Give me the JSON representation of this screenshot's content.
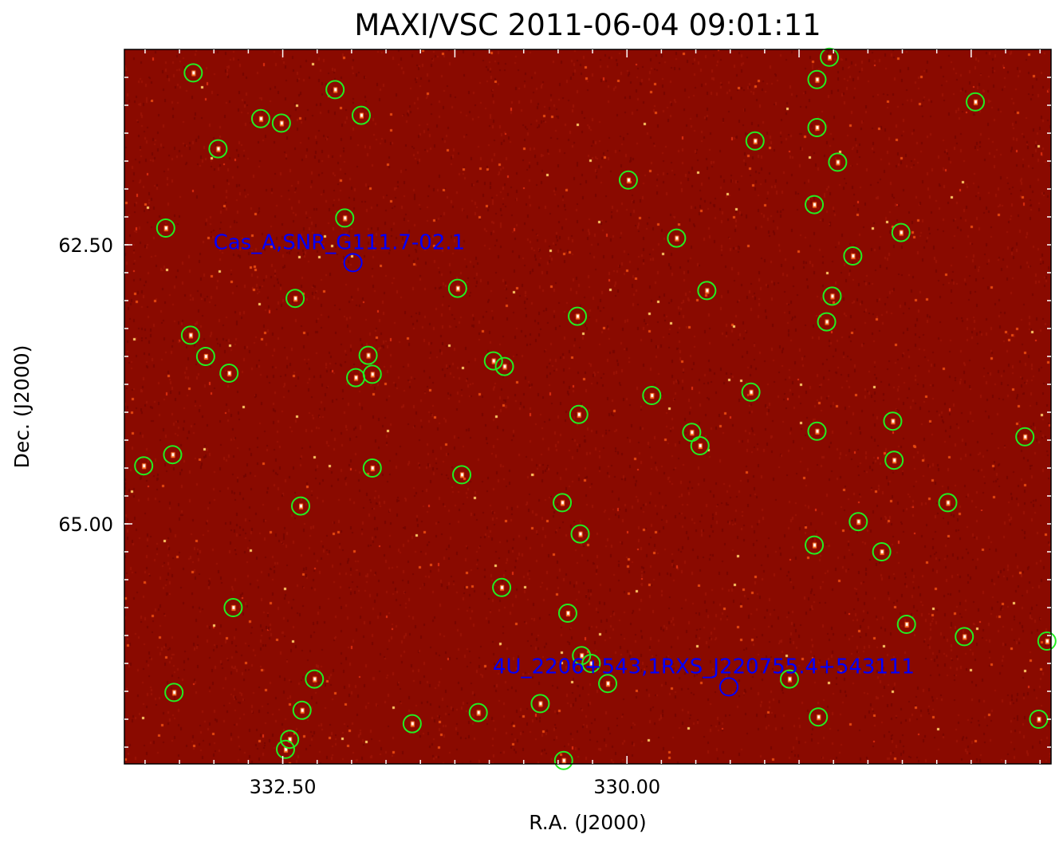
{
  "chart_data": {
    "type": "scatter",
    "title": "MAXI/VSC 2011-06-04 09:01:11",
    "xlabel": "R.A. (J2000)",
    "ylabel": "Dec. (J2000)",
    "xlim": [
      333.65,
      326.92
    ],
    "ylim": [
      60.75,
      67.15
    ],
    "x_ticks": [
      "332.50",
      "330.00"
    ],
    "y_ticks": [
      "62.50",
      "65.00"
    ],
    "x_tick_values": [
      332.5,
      330.0
    ],
    "y_tick_values": [
      62.5,
      65.0
    ],
    "background": "X-ray intensity image (dark red noise with bright point sources)",
    "colors": {
      "background": "#8b0000",
      "detected_marker": "#22ee22",
      "catalog_marker": "#0000ff",
      "frame": "#000000"
    },
    "detected_sources": [
      [
        333.15,
        60.96
      ],
      [
        332.97,
        61.64
      ],
      [
        332.66,
        61.37
      ],
      [
        332.51,
        61.41
      ],
      [
        332.12,
        61.11
      ],
      [
        331.93,
        61.34
      ],
      [
        332.05,
        62.26
      ],
      [
        333.35,
        62.35
      ],
      [
        332.41,
        62.98
      ],
      [
        333.17,
        63.31
      ],
      [
        333.06,
        63.5
      ],
      [
        332.89,
        63.65
      ],
      [
        331.88,
        63.49
      ],
      [
        331.97,
        63.69
      ],
      [
        331.85,
        63.66
      ],
      [
        333.51,
        64.48
      ],
      [
        333.3,
        64.38
      ],
      [
        331.85,
        64.5
      ],
      [
        332.37,
        64.84
      ],
      [
        332.86,
        65.75
      ],
      [
        333.29,
        66.51
      ],
      [
        332.27,
        66.39
      ],
      [
        332.36,
        66.67
      ],
      [
        332.45,
        66.93
      ],
      [
        332.48,
        67.02
      ],
      [
        331.56,
        66.79
      ],
      [
        331.08,
        66.69
      ],
      [
        330.63,
        66.61
      ],
      [
        330.46,
        67.12
      ],
      [
        331.23,
        62.89
      ],
      [
        330.97,
        63.54
      ],
      [
        330.89,
        63.59
      ],
      [
        331.2,
        64.56
      ],
      [
        330.36,
        63.14
      ],
      [
        330.35,
        64.02
      ],
      [
        330.47,
        64.81
      ],
      [
        330.34,
        65.09
      ],
      [
        330.91,
        65.57
      ],
      [
        330.43,
        65.8
      ],
      [
        330.33,
        66.18
      ],
      [
        330.26,
        66.25
      ],
      [
        330.14,
        66.43
      ],
      [
        329.99,
        61.92
      ],
      [
        329.64,
        62.44
      ],
      [
        329.42,
        62.91
      ],
      [
        329.82,
        63.85
      ],
      [
        329.53,
        64.18
      ],
      [
        329.47,
        64.3
      ],
      [
        329.07,
        61.57
      ],
      [
        329.1,
        63.82
      ],
      [
        328.82,
        66.39
      ],
      [
        328.61,
        66.73
      ],
      [
        328.53,
        60.82
      ],
      [
        328.62,
        61.02
      ],
      [
        328.62,
        61.45
      ],
      [
        328.47,
        61.76
      ],
      [
        328.64,
        62.14
      ],
      [
        328.01,
        62.39
      ],
      [
        328.36,
        62.6
      ],
      [
        328.51,
        62.96
      ],
      [
        328.55,
        63.19
      ],
      [
        327.47,
        61.22
      ],
      [
        328.62,
        64.17
      ],
      [
        328.07,
        64.08
      ],
      [
        328.06,
        64.43
      ],
      [
        327.11,
        64.22
      ],
      [
        327.67,
        64.81
      ],
      [
        328.32,
        64.98
      ],
      [
        328.64,
        65.19
      ],
      [
        328.15,
        65.25
      ],
      [
        327.97,
        65.9
      ],
      [
        327.55,
        66.01
      ],
      [
        326.95,
        66.05
      ],
      [
        327.01,
        66.75
      ]
    ],
    "catalog_sources": [
      {
        "name": "Cas_A,SNR_G111.7-02.1",
        "ra": 331.99,
        "dec": 62.66
      },
      {
        "name": "4U_2206+543,1RXS_J220755.4+543111",
        "ra": 329.26,
        "dec": 66.46
      }
    ]
  }
}
